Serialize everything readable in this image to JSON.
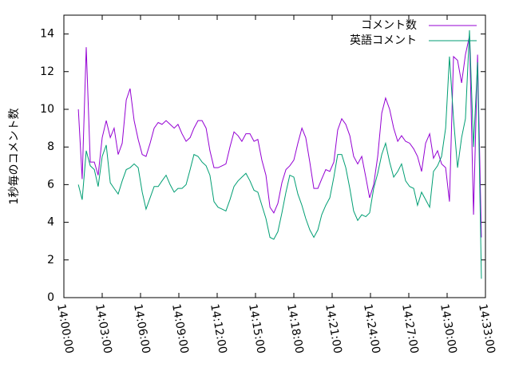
{
  "chart_data": {
    "type": "line",
    "ylabel": "1秒毎のコメント数",
    "x": [
      "14:01:08",
      "14:01:26",
      "14:01:45",
      "14:02:04",
      "14:02:23",
      "14:02:41",
      "14:03:00",
      "14:03:19",
      "14:03:38",
      "14:03:56",
      "14:04:15",
      "14:04:34",
      "14:04:53",
      "14:05:11",
      "14:05:30",
      "14:05:49",
      "14:06:08",
      "14:06:26",
      "14:06:45",
      "14:07:04",
      "14:07:23",
      "14:07:41",
      "14:08:00",
      "14:08:19",
      "14:08:38",
      "14:08:56",
      "14:09:15",
      "14:09:34",
      "14:09:53",
      "14:10:11",
      "14:10:30",
      "14:10:49",
      "14:11:08",
      "14:11:26",
      "14:11:45",
      "14:12:04",
      "14:12:23",
      "14:12:41",
      "14:13:00",
      "14:13:19",
      "14:13:38",
      "14:13:56",
      "14:14:15",
      "14:14:34",
      "14:14:53",
      "14:15:11",
      "14:15:30",
      "14:15:49",
      "14:16:08",
      "14:16:26",
      "14:16:45",
      "14:17:04",
      "14:17:23",
      "14:17:41",
      "14:18:00",
      "14:18:19",
      "14:18:38",
      "14:18:56",
      "14:19:15",
      "14:19:34",
      "14:19:53",
      "14:20:11",
      "14:20:30",
      "14:20:49",
      "14:21:08",
      "14:21:26",
      "14:21:45",
      "14:22:04",
      "14:22:23",
      "14:22:41",
      "14:23:00",
      "14:23:19",
      "14:23:38",
      "14:23:56",
      "14:24:15",
      "14:24:34",
      "14:24:53",
      "14:25:11",
      "14:25:30",
      "14:25:49",
      "14:26:08",
      "14:26:26",
      "14:26:45",
      "14:27:04",
      "14:27:23",
      "14:27:41",
      "14:28:00",
      "14:28:19",
      "14:28:38",
      "14:28:56",
      "14:29:15",
      "14:29:34",
      "14:29:53",
      "14:30:11",
      "14:30:30",
      "14:30:49",
      "14:31:08",
      "14:31:26",
      "14:31:45",
      "14:32:04",
      "14:32:23",
      "14:32:41"
    ],
    "series": [
      {
        "name": "コメント数",
        "color": "#9400d3",
        "values": [
          10,
          6.3,
          13.3,
          7.2,
          7.2,
          6.5,
          8.5,
          9.4,
          8.5,
          9,
          7.6,
          8.2,
          10.5,
          11.1,
          9.4,
          8.4,
          7.6,
          7.5,
          8.2,
          9,
          9.3,
          9.2,
          9.4,
          9.2,
          9,
          9.2,
          8.7,
          8.3,
          8.5,
          9,
          9.4,
          9.4,
          9,
          7.8,
          6.9,
          6.9,
          7,
          7.1,
          8,
          8.8,
          8.6,
          8.3,
          8.7,
          8.7,
          8.3,
          8.4,
          7.3,
          6.5,
          4.8,
          4.5,
          5,
          6.1,
          6.8,
          7,
          7.3,
          8.2,
          9,
          8.5,
          7.2,
          5.8,
          5.8,
          6.3,
          6.8,
          6.7,
          7.2,
          8.9,
          9.5,
          9.2,
          8.6,
          7.5,
          7.1,
          7.5,
          6.4,
          5.3,
          6,
          7.5,
          9.8,
          10.6,
          10,
          9,
          8.3,
          8.6,
          8.3,
          8.2,
          7.9,
          7.5,
          6.7,
          8.2,
          8.7,
          7.4,
          7.8,
          7.1,
          6.9,
          5.1,
          12.8,
          12.6,
          11.4,
          12.9,
          13.9,
          4.4,
          12.9,
          3.2
        ]
      },
      {
        "name": "英語コメント",
        "color": "#009e73",
        "values": [
          6,
          5.2,
          7.8,
          7,
          6.8,
          5.9,
          7.5,
          8.1,
          6.1,
          5.8,
          5.5,
          6.2,
          6.8,
          6.9,
          7.1,
          6.9,
          5.6,
          4.7,
          5.3,
          5.9,
          5.9,
          6.2,
          6.5,
          6,
          5.6,
          5.8,
          5.8,
          6,
          6.8,
          7.6,
          7.5,
          7.2,
          7,
          6.5,
          5.1,
          4.8,
          4.7,
          4.6,
          5.2,
          5.9,
          6.2,
          6.4,
          6.6,
          6.2,
          5.7,
          5.6,
          4.9,
          4.2,
          3.2,
          3.1,
          3.5,
          4.5,
          5.6,
          6.5,
          6.4,
          5.5,
          4.9,
          4.2,
          3.6,
          3.2,
          3.6,
          4.4,
          4.9,
          5.3,
          6.4,
          7.6,
          7.6,
          6.9,
          5.8,
          4.6,
          4.1,
          4.4,
          4.3,
          4.5,
          5.8,
          6.6,
          7.6,
          8.2,
          7.2,
          6.4,
          6.7,
          7.1,
          6.2,
          5.9,
          5.8,
          4.9,
          5.6,
          5.2,
          4.8,
          6.7,
          7,
          7.5,
          9,
          12.8,
          9.5,
          6.9,
          8.5,
          9.5,
          14.2,
          8,
          12.5,
          1
        ]
      }
    ],
    "xlim": [
      "14:00:00",
      "14:33:00"
    ],
    "xticks": [
      "14:00:00",
      "14:03:00",
      "14:06:00",
      "14:09:00",
      "14:12:00",
      "14:15:00",
      "14:18:00",
      "14:21:00",
      "14:24:00",
      "14:27:00",
      "14:30:00",
      "14:33:00"
    ],
    "ylim": [
      0,
      15
    ],
    "yticks": [
      0,
      2,
      4,
      6,
      8,
      10,
      12,
      14
    ],
    "legend": "top-right"
  }
}
